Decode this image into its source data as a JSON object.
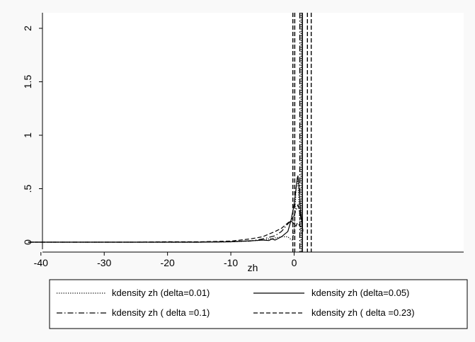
{
  "chart_data": {
    "type": "line",
    "title": "",
    "xlabel": "zh",
    "ylabel": "",
    "xlim": [
      -42.5,
      4
    ],
    "ylim": [
      0,
      2.1
    ],
    "x_ticks": [
      -40,
      -30,
      -20,
      -10,
      0
    ],
    "x_tick_labels": [
      "-40",
      "-30",
      "-20",
      "-10",
      "0"
    ],
    "y_ticks": [
      0,
      0.5,
      1,
      1.5,
      2
    ],
    "y_tick_labels": [
      "0",
      ".5",
      "1",
      "1.5",
      "2"
    ],
    "grid": false,
    "legend_position": "bottom",
    "series": [
      {
        "name": "kdensity zh (delta=0.01)",
        "dash": "dotted",
        "x": [
          -42,
          -30,
          -20,
          -15,
          -10,
          -7,
          -5,
          -3,
          -2,
          -1,
          -0.6,
          -0.3,
          0,
          0.3,
          0.5,
          0.6,
          0.8,
          1,
          1.2
        ],
        "y": [
          0,
          0,
          0,
          0,
          0.003,
          0.01,
          0.02,
          0.04,
          0.05,
          0.05,
          0.03,
          0.02,
          0.1,
          0.5,
          0.6,
          0.55,
          0.3,
          0.1,
          0.08
        ],
        "vline_x": 1.1
      },
      {
        "name": "kdensity zh (delta=0.05)",
        "dash": "solid",
        "x": [
          -42,
          -30,
          -20,
          -15,
          -10,
          -8,
          -6,
          -5,
          -4,
          -3.5,
          -3,
          -2,
          -1,
          -0.5,
          0,
          0.3,
          0.5,
          0.6,
          0.8,
          1,
          1.2,
          1.4
        ],
        "y": [
          0,
          0,
          0,
          0,
          0.003,
          0.01,
          0.015,
          0.02,
          0.015,
          0.03,
          0.02,
          0.05,
          0.1,
          0.2,
          0.35,
          0.5,
          0.6,
          0.62,
          0.5,
          0.3,
          0.2,
          0.1
        ],
        "vline_x": 1.3
      },
      {
        "name": "kdensity zh ( delta =0.1)",
        "dash": "dashdot",
        "x": [
          -42,
          -30,
          -20,
          -15,
          -10,
          -7,
          -5,
          -3,
          -2,
          -1,
          -0.5,
          0,
          0.3,
          0.6,
          1,
          1.2,
          1.4
        ],
        "y": [
          0,
          0,
          0,
          0,
          0.005,
          0.01,
          0.03,
          0.06,
          0.1,
          0.17,
          0.2,
          0.25,
          0.3,
          0.35,
          0.25,
          0.18,
          0.1
        ],
        "vline_x": 0.9
      },
      {
        "name": "kdensity zh ( delta =0.23)",
        "dash": "dashed",
        "x": [
          -42,
          -30,
          -25,
          -20,
          -15,
          -10,
          -7,
          -5,
          -3,
          -2,
          -1,
          -0.5,
          0,
          0.3,
          0.5,
          0.8,
          1.1
        ],
        "y": [
          0,
          0,
          0,
          0.004,
          0.003,
          0.01,
          0.03,
          0.05,
          0.1,
          0.13,
          0.18,
          0.2,
          0.17,
          0.15,
          0.18,
          0.16,
          0.14
        ],
        "vline_x": -0.2
      }
    ],
    "extra_dashed_vlines": [
      0.1,
      2.1,
      2.7
    ]
  }
}
